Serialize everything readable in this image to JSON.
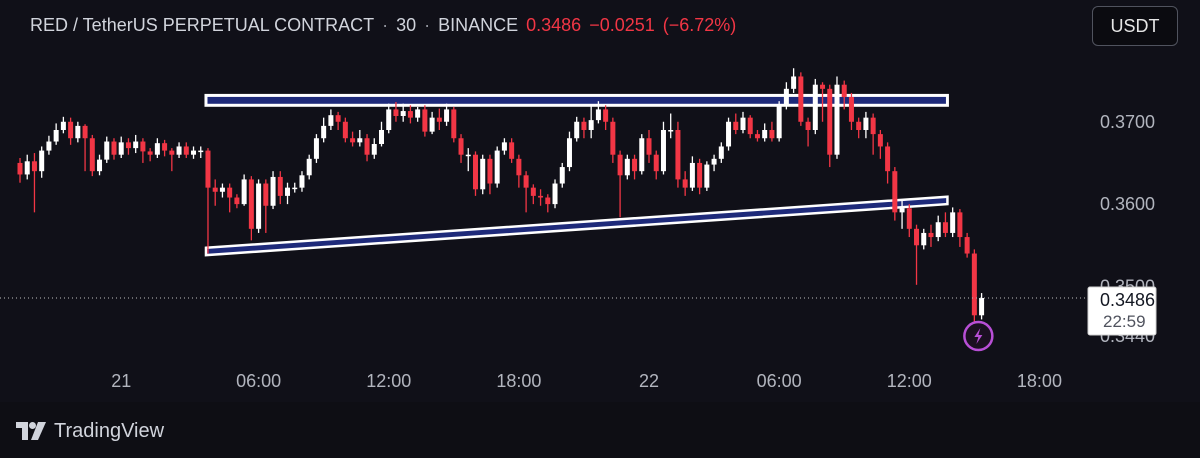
{
  "header": {
    "symbol": "RED / TetherUS PERPETUAL CONTRACT",
    "interval": "30",
    "exchange": "BINANCE",
    "price": "0.3486",
    "change": "−0.0251",
    "change_pct": "(−6.72%)",
    "separator": "·"
  },
  "toolbar": {
    "currency_label": "USDT"
  },
  "brand": {
    "name": "TradingView",
    "logo_icon": "tradingview-logo-icon"
  },
  "colors": {
    "up": "#ffffff",
    "down": "#f23645",
    "channel_fill": "#1e2a7a",
    "channel_border": "#ffffff",
    "background": "#101018",
    "alert_icon": "#b84fd6"
  },
  "chart_data": {
    "type": "candlestick",
    "y_axis": {
      "range": [
        0.3435,
        0.3775
      ],
      "tick_labels": [
        "0.3700",
        "0.3600",
        "0.3500",
        "0.3440"
      ]
    },
    "x_axis": {
      "tick_labels": [
        "21",
        "06:00",
        "12:00",
        "18:00",
        "22",
        "06:00",
        "12:00",
        "18:00"
      ]
    },
    "last_price": {
      "value": 0.3486,
      "label": "0.3486",
      "countdown": "22:59"
    },
    "annotations": [
      {
        "type": "horizontal-band",
        "label": "resistance zone",
        "y_top": 0.3732,
        "y_bottom": 0.372,
        "x_start_candle": 26,
        "x_end_candle": 128
      },
      {
        "type": "sloped-channel",
        "label": "support trendline",
        "start_candle": 26,
        "end_candle": 128,
        "start_top": 0.3547,
        "start_bottom": 0.3538,
        "end_top": 0.3609,
        "end_bottom": 0.36
      }
    ],
    "candles": [
      [
        0.365,
        0.3636,
        0.3656,
        0.3626
      ],
      [
        0.3636,
        0.3652,
        0.366,
        0.363
      ],
      [
        0.3652,
        0.364,
        0.3662,
        0.359
      ],
      [
        0.364,
        0.3665,
        0.367,
        0.3632
      ],
      [
        0.3665,
        0.3676,
        0.3683,
        0.366
      ],
      [
        0.3676,
        0.369,
        0.3698,
        0.3672
      ],
      [
        0.369,
        0.37,
        0.3706,
        0.3686
      ],
      [
        0.37,
        0.368,
        0.3705,
        0.3672
      ],
      [
        0.368,
        0.3695,
        0.37,
        0.3675
      ],
      [
        0.3695,
        0.368,
        0.3697,
        0.364
      ],
      [
        0.368,
        0.364,
        0.3684,
        0.3634
      ],
      [
        0.364,
        0.3654,
        0.366,
        0.3635
      ],
      [
        0.3654,
        0.3676,
        0.3682,
        0.365
      ],
      [
        0.3676,
        0.366,
        0.368,
        0.3654
      ],
      [
        0.366,
        0.3675,
        0.3682,
        0.3656
      ],
      [
        0.3675,
        0.3668,
        0.368,
        0.366
      ],
      [
        0.3668,
        0.3676,
        0.3684,
        0.3662
      ],
      [
        0.3676,
        0.3664,
        0.368,
        0.365
      ],
      [
        0.3664,
        0.366,
        0.3668,
        0.3652
      ],
      [
        0.366,
        0.3674,
        0.368,
        0.3656
      ],
      [
        0.3674,
        0.3665,
        0.3678,
        0.3658
      ],
      [
        0.3665,
        0.366,
        0.3668,
        0.364
      ],
      [
        0.366,
        0.367,
        0.3675,
        0.3656
      ],
      [
        0.367,
        0.366,
        0.3675,
        0.3656
      ],
      [
        0.366,
        0.3665,
        0.367,
        0.3655
      ],
      [
        0.3665,
        0.3665,
        0.367,
        0.3656
      ],
      [
        0.3665,
        0.362,
        0.3668,
        0.354
      ],
      [
        0.362,
        0.3615,
        0.363,
        0.3598
      ],
      [
        0.3615,
        0.362,
        0.3625,
        0.3608
      ],
      [
        0.362,
        0.3608,
        0.3625,
        0.359
      ],
      [
        0.3608,
        0.36,
        0.3612,
        0.3595
      ],
      [
        0.36,
        0.363,
        0.3636,
        0.3598
      ],
      [
        0.363,
        0.357,
        0.3634,
        0.3556
      ],
      [
        0.357,
        0.3625,
        0.363,
        0.3565
      ],
      [
        0.3625,
        0.3598,
        0.363,
        0.3565
      ],
      [
        0.3598,
        0.3633,
        0.364,
        0.3594
      ],
      [
        0.3633,
        0.361,
        0.364,
        0.36
      ],
      [
        0.361,
        0.362,
        0.3626,
        0.36
      ],
      [
        0.362,
        0.362,
        0.3626,
        0.3614
      ],
      [
        0.362,
        0.3635,
        0.364,
        0.3615
      ],
      [
        0.3635,
        0.3655,
        0.366,
        0.363
      ],
      [
        0.3655,
        0.368,
        0.3685,
        0.365
      ],
      [
        0.368,
        0.3695,
        0.3705,
        0.3675
      ],
      [
        0.3695,
        0.3708,
        0.3715,
        0.369
      ],
      [
        0.3708,
        0.37,
        0.3712,
        0.369
      ],
      [
        0.37,
        0.368,
        0.3705,
        0.3675
      ],
      [
        0.368,
        0.3675,
        0.3688,
        0.367
      ],
      [
        0.3675,
        0.368,
        0.369,
        0.367
      ],
      [
        0.368,
        0.366,
        0.3685,
        0.3652
      ],
      [
        0.366,
        0.3673,
        0.368,
        0.3655
      ],
      [
        0.3673,
        0.369,
        0.37,
        0.367
      ],
      [
        0.369,
        0.3715,
        0.3722,
        0.3686
      ],
      [
        0.3715,
        0.3707,
        0.3724,
        0.37
      ],
      [
        0.3707,
        0.3713,
        0.3722,
        0.37
      ],
      [
        0.3713,
        0.3705,
        0.372,
        0.3698
      ],
      [
        0.3705,
        0.3715,
        0.3718,
        0.37
      ],
      [
        0.3715,
        0.3688,
        0.372,
        0.3682
      ],
      [
        0.3688,
        0.3705,
        0.3712,
        0.3685
      ],
      [
        0.3705,
        0.37,
        0.3716,
        0.369
      ],
      [
        0.37,
        0.3715,
        0.3722,
        0.3695
      ],
      [
        0.3715,
        0.368,
        0.3718,
        0.3675
      ],
      [
        0.368,
        0.366,
        0.3685,
        0.365
      ],
      [
        0.366,
        0.366,
        0.3668,
        0.364
      ],
      [
        0.366,
        0.3618,
        0.3664,
        0.361
      ],
      [
        0.3618,
        0.3655,
        0.366,
        0.3612
      ],
      [
        0.3655,
        0.3625,
        0.366,
        0.3612
      ],
      [
        0.3625,
        0.3665,
        0.367,
        0.362
      ],
      [
        0.3665,
        0.3675,
        0.368,
        0.366
      ],
      [
        0.3675,
        0.3655,
        0.368,
        0.365
      ],
      [
        0.3655,
        0.3635,
        0.366,
        0.362
      ],
      [
        0.3635,
        0.362,
        0.364,
        0.359
      ],
      [
        0.362,
        0.361,
        0.3624,
        0.36
      ],
      [
        0.361,
        0.3608,
        0.3618,
        0.3598
      ],
      [
        0.3608,
        0.36,
        0.3612,
        0.359
      ],
      [
        0.36,
        0.3625,
        0.363,
        0.3595
      ],
      [
        0.3625,
        0.3645,
        0.365,
        0.362
      ],
      [
        0.3645,
        0.368,
        0.3688,
        0.364
      ],
      [
        0.368,
        0.37,
        0.3706,
        0.3676
      ],
      [
        0.37,
        0.369,
        0.3705,
        0.368
      ],
      [
        0.369,
        0.3702,
        0.372,
        0.368
      ],
      [
        0.3702,
        0.3715,
        0.3725,
        0.3698
      ],
      [
        0.3715,
        0.37,
        0.372,
        0.369
      ],
      [
        0.37,
        0.366,
        0.3705,
        0.365
      ],
      [
        0.366,
        0.3635,
        0.3665,
        0.3584
      ],
      [
        0.3635,
        0.3655,
        0.366,
        0.363
      ],
      [
        0.3655,
        0.364,
        0.366,
        0.363
      ],
      [
        0.364,
        0.368,
        0.3685,
        0.3636
      ],
      [
        0.368,
        0.366,
        0.369,
        0.365
      ],
      [
        0.366,
        0.364,
        0.3665,
        0.363
      ],
      [
        0.364,
        0.369,
        0.37,
        0.3636
      ],
      [
        0.369,
        0.369,
        0.371,
        0.368
      ],
      [
        0.369,
        0.363,
        0.37,
        0.362
      ],
      [
        0.363,
        0.362,
        0.364,
        0.361
      ],
      [
        0.362,
        0.365,
        0.3658,
        0.3616
      ],
      [
        0.365,
        0.362,
        0.3655,
        0.3612
      ],
      [
        0.362,
        0.3648,
        0.3652,
        0.3616
      ],
      [
        0.3648,
        0.3655,
        0.366,
        0.364
      ],
      [
        0.3655,
        0.367,
        0.3675,
        0.365
      ],
      [
        0.367,
        0.37,
        0.3705,
        0.3665
      ],
      [
        0.37,
        0.369,
        0.371,
        0.3685
      ],
      [
        0.369,
        0.3705,
        0.3712,
        0.3686
      ],
      [
        0.3705,
        0.3685,
        0.3708,
        0.368
      ],
      [
        0.3685,
        0.368,
        0.369,
        0.3676
      ],
      [
        0.368,
        0.369,
        0.3698,
        0.3676
      ],
      [
        0.369,
        0.368,
        0.37,
        0.3676
      ],
      [
        0.368,
        0.372,
        0.3725,
        0.3676
      ],
      [
        0.372,
        0.374,
        0.3748,
        0.3715
      ],
      [
        0.374,
        0.3755,
        0.3765,
        0.3735
      ],
      [
        0.3755,
        0.37,
        0.376,
        0.3695
      ],
      [
        0.37,
        0.369,
        0.3705,
        0.367
      ],
      [
        0.369,
        0.3745,
        0.3752,
        0.3685
      ],
      [
        0.3745,
        0.374,
        0.3748,
        0.37
      ],
      [
        0.374,
        0.366,
        0.3745,
        0.3645
      ],
      [
        0.366,
        0.3745,
        0.3755,
        0.3655
      ],
      [
        0.3745,
        0.373,
        0.375,
        0.3715
      ],
      [
        0.373,
        0.37,
        0.3735,
        0.369
      ],
      [
        0.37,
        0.369,
        0.3705,
        0.368
      ],
      [
        0.369,
        0.3705,
        0.3712,
        0.368
      ],
      [
        0.3705,
        0.3685,
        0.371,
        0.366
      ],
      [
        0.3685,
        0.367,
        0.369,
        0.3655
      ],
      [
        0.367,
        0.364,
        0.3675,
        0.3625
      ],
      [
        0.364,
        0.359,
        0.3645,
        0.358
      ],
      [
        0.359,
        0.3595,
        0.3605,
        0.357
      ],
      [
        0.3595,
        0.357,
        0.36,
        0.356
      ],
      [
        0.357,
        0.355,
        0.3575,
        0.3502
      ],
      [
        0.355,
        0.3565,
        0.357,
        0.3545
      ],
      [
        0.3565,
        0.356,
        0.3575,
        0.3548
      ],
      [
        0.356,
        0.3578,
        0.3586,
        0.3555
      ],
      [
        0.3578,
        0.3565,
        0.359,
        0.356
      ],
      [
        0.3565,
        0.359,
        0.3596,
        0.356
      ],
      [
        0.359,
        0.356,
        0.3594,
        0.3548
      ],
      [
        0.356,
        0.354,
        0.3565,
        0.3535
      ],
      [
        0.354,
        0.3465,
        0.3545,
        0.3445
      ],
      [
        0.3465,
        0.3486,
        0.3492,
        0.346
      ]
    ]
  }
}
